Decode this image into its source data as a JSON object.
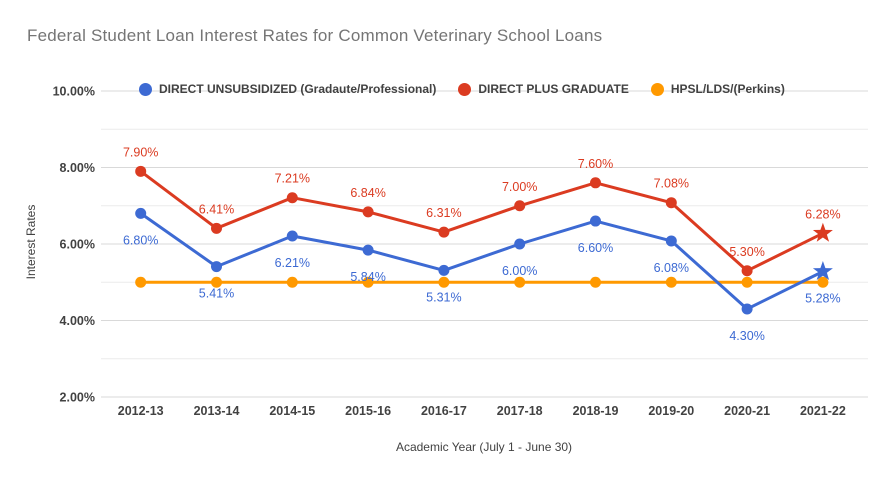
{
  "chart_data": {
    "type": "line",
    "title": "Federal Student Loan Interest Rates for Common Veterinary School Loans",
    "xlabel": "Academic Year (July 1 - June 30)",
    "ylabel": "Interest Rates",
    "categories": [
      "2012-13",
      "2013-14",
      "2014-15",
      "2015-16",
      "2016-17",
      "2017-18",
      "2018-19",
      "2019-20",
      "2020-21",
      "2021-22"
    ],
    "y_axis": {
      "min": 2,
      "max": 10,
      "major_step": 2,
      "minor_step": 1,
      "tick_labels": [
        "2.00%",
        "4.00%",
        "6.00%",
        "8.00%",
        "10.00%"
      ]
    },
    "grid": true,
    "legend_position": "top",
    "series": [
      {
        "name": "DIRECT UNSUBSIDIZED (Gradaute/Professional)",
        "color": "#3D6AD3",
        "marker": "circle",
        "last_marker": "star",
        "data_labels": true,
        "label_side": "below",
        "values": [
          6.8,
          5.41,
          6.21,
          5.84,
          5.31,
          6.0,
          6.6,
          6.08,
          4.3,
          5.28
        ]
      },
      {
        "name": "DIRECT PLUS GRADUATE",
        "color": "#DB3B21",
        "marker": "circle",
        "last_marker": "star",
        "data_labels": true,
        "label_side": "above",
        "values": [
          7.9,
          6.41,
          7.21,
          6.84,
          6.31,
          7.0,
          7.6,
          7.08,
          5.3,
          6.28
        ]
      },
      {
        "name": "HPSL/LDS/(Perkins)",
        "color": "#FF9900",
        "marker": "circle",
        "last_marker": "circle",
        "data_labels": false,
        "label_side": "none",
        "values": [
          5.0,
          5.0,
          5.0,
          5.0,
          5.0,
          5.0,
          5.0,
          5.0,
          5.0,
          5.0
        ]
      }
    ],
    "colors": {
      "title_text": "#757575",
      "axis_tick_text": "#424242",
      "axis_title_text": "#424242",
      "data_label_blue": "#3D6AD3",
      "data_label_red": "#DB3B21",
      "grid_major": "#d9d9d9",
      "grid_minor": "#ebebeb",
      "background": "#ffffff"
    }
  }
}
